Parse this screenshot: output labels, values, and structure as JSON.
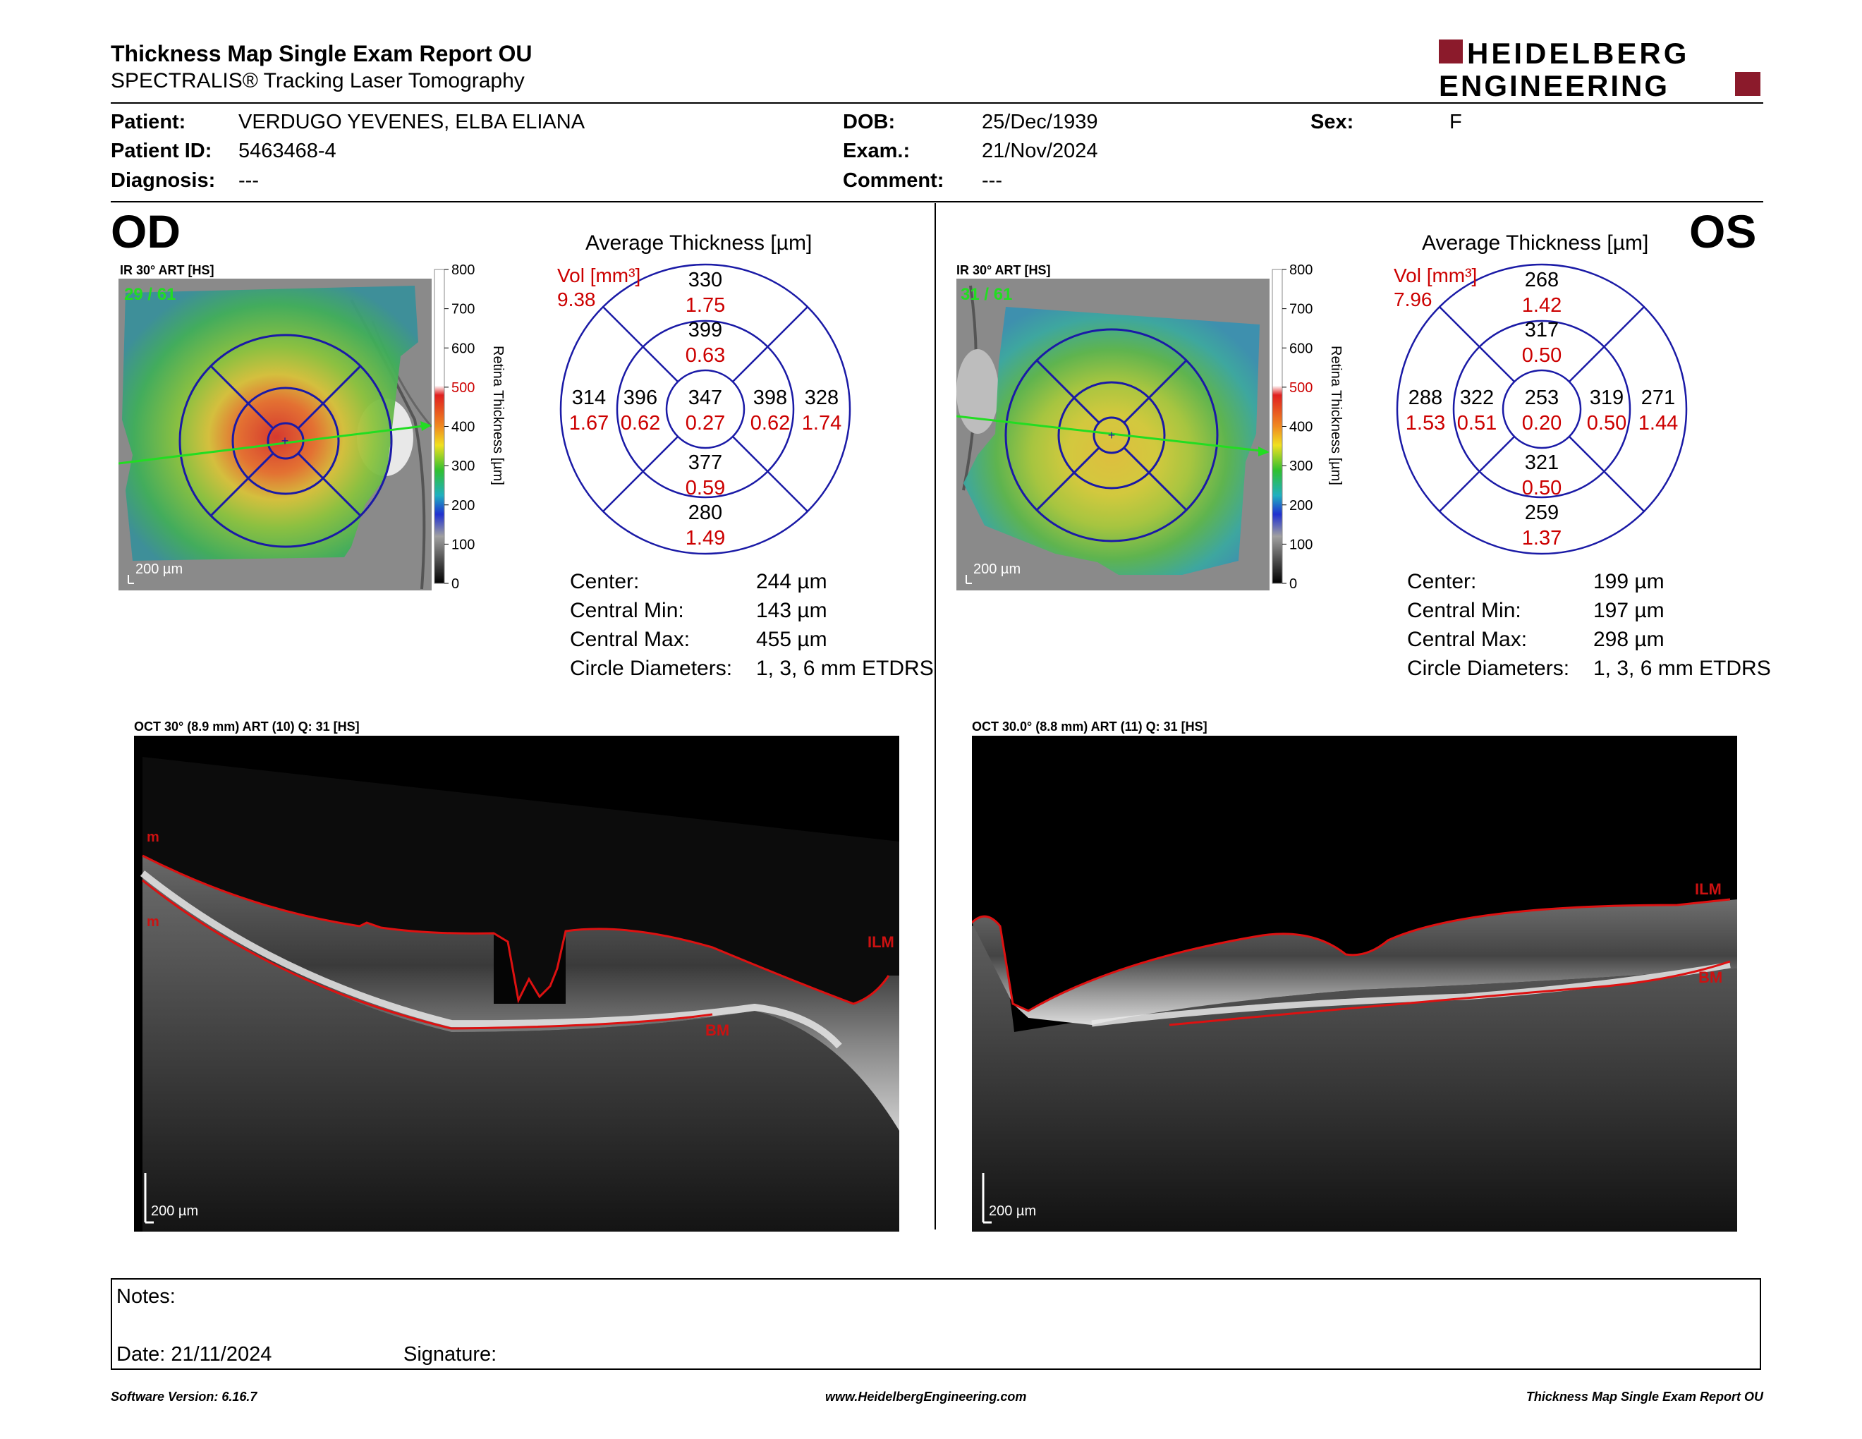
{
  "header": {
    "title": "Thickness Map Single Exam Report OU",
    "subtitle": "SPECTRALIS® Tracking Laser Tomography",
    "logo_line1": "HEIDELBERG",
    "logo_line2": "ENGINEERING",
    "logo_color": "#8B1A2B"
  },
  "patient": {
    "patient_label": "Patient:",
    "patient_value": "VERDUGO YEVENES, ELBA ELIANA",
    "id_label": "Patient ID:",
    "id_value": "5463468-4",
    "diagnosis_label": "Diagnosis:",
    "diagnosis_value": "---",
    "dob_label": "DOB:",
    "dob_value": "25/Dec/1939",
    "exam_label": "Exam.:",
    "exam_value": "21/Nov/2024",
    "comment_label": "Comment:",
    "comment_value": "---",
    "sex_label": "Sex:",
    "sex_value": "F"
  },
  "colorbar": {
    "ticks": [
      "800",
      "700",
      "600",
      "500",
      "400",
      "300",
      "200",
      "100",
      "0"
    ],
    "tick_colors": [
      "#000",
      "#000",
      "#000",
      "#cc0000",
      "#000",
      "#000",
      "#000",
      "#000",
      "#000"
    ],
    "label": "Retina Thickness [µm]"
  },
  "od": {
    "eye": "OD",
    "ir_label": "IR 30° ART [HS]",
    "frame": "29 / 61",
    "scale": "200 µm",
    "avg_title": "Average Thickness [µm]",
    "vol_label": "Vol [mm³]",
    "vol_value": "9.38",
    "sectors": {
      "outer_sup": {
        "t": "330",
        "v": "1.75"
      },
      "inner_sup": {
        "t": "399",
        "v": "0.63"
      },
      "outer_temp": {
        "t": "314",
        "v": "1.67"
      },
      "inner_temp": {
        "t": "396",
        "v": "0.62"
      },
      "center": {
        "t": "347",
        "v": "0.27"
      },
      "inner_nas": {
        "t": "398",
        "v": "0.62"
      },
      "outer_nas": {
        "t": "328",
        "v": "1.74"
      },
      "inner_inf": {
        "t": "377",
        "v": "0.59"
      },
      "outer_inf": {
        "t": "280",
        "v": "1.49"
      }
    },
    "stats": [
      {
        "label": "Center:",
        "value": "244 µm"
      },
      {
        "label": "Central Min:",
        "value": "143 µm"
      },
      {
        "label": "Central Max:",
        "value": "455 µm"
      },
      {
        "label": "Circle Diameters:",
        "value": "1, 3, 6 mm ETDRS"
      }
    ],
    "oct_label": "OCT 30° (8.9 mm) ART (10) Q: 31 [HS]",
    "oct_scale": "200 µm",
    "ilm": "ILM",
    "bm": "BM",
    "m1": "m",
    "m2": "m"
  },
  "os": {
    "eye": "OS",
    "ir_label": "IR 30° ART [HS]",
    "frame": "31 / 61",
    "scale": "200 µm",
    "avg_title": "Average Thickness [µm]",
    "vol_label": "Vol [mm³]",
    "vol_value": "7.96",
    "sectors": {
      "outer_sup": {
        "t": "268",
        "v": "1.42"
      },
      "inner_sup": {
        "t": "317",
        "v": "0.50"
      },
      "outer_temp": {
        "t": "288",
        "v": "1.53"
      },
      "inner_temp": {
        "t": "322",
        "v": "0.51"
      },
      "center": {
        "t": "253",
        "v": "0.20"
      },
      "inner_nas": {
        "t": "319",
        "v": "0.50"
      },
      "outer_nas": {
        "t": "271",
        "v": "1.44"
      },
      "inner_inf": {
        "t": "321",
        "v": "0.50"
      },
      "outer_inf": {
        "t": "259",
        "v": "1.37"
      }
    },
    "stats": [
      {
        "label": "Center:",
        "value": "199 µm"
      },
      {
        "label": "Central Min:",
        "value": "197 µm"
      },
      {
        "label": "Central Max:",
        "value": "298 µm"
      },
      {
        "label": "Circle Diameters:",
        "value": "1, 3, 6 mm ETDRS"
      }
    ],
    "oct_label": "OCT 30.0° (8.8 mm) ART (11) Q: 31 [HS]",
    "oct_scale": "200 µm",
    "ilm": "ILM",
    "bm": "BM"
  },
  "notes": {
    "notes_label": "Notes:",
    "date_label": "Date: 21/11/2024",
    "signature_label": "Signature:"
  },
  "footer": {
    "left": "Software Version: 6.16.7",
    "center": "www.HeidelbergEngineering.com",
    "right": "Thickness Map Single Exam Report OU"
  },
  "colors": {
    "grid_blue": "#1a1aa6",
    "volume_red": "#cc0000",
    "scan_green": "#22dd22"
  }
}
